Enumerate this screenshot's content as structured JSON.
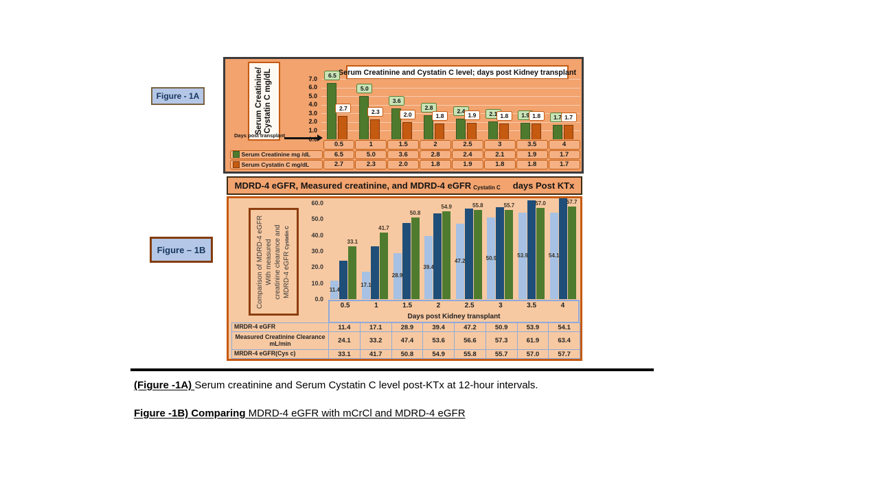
{
  "figure_1a": {
    "label": "Figure - 1A",
    "ylabel_line1": "Serum Creatinine/",
    "ylabel_line2": "Cystatin C mg/dL",
    "x_note": "Days post transplant"
  },
  "band": {
    "main": "MDRD-4 eGFR, Measured creatinine, and MDRD-4 eGFR",
    "sub": "Cystatin C",
    "suffix": "days Post KTx"
  },
  "figure_1b": {
    "label": "Figure – 1B",
    "ylabel_line1": "Comparison of MDRD-4 eGFR",
    "ylabel_line2": "With measured",
    "ylabel_line3": "creatinine clearance  and",
    "ylabel_line4_main": "MDRD-4 eGFR",
    "ylabel_line4_sub": "Cystatin C"
  },
  "captions": {
    "line1_bold": "(Figure -1A) ",
    "line1_rest": "Serum creatinine and Serum Cystatin C level post-KTx at 12-hour intervals.",
    "line2_bold": "Figure -1B) Comparing ",
    "line2_rest": "MDRD-4 eGFR with mCrCl and MDRD-4 eGFR"
  },
  "colors": {
    "fig1a_background": "#F2A36E",
    "fig1b_background": "#F7C9A2",
    "fig1a_frame_border": "#3B3B3B",
    "fig1b_frame_border": "#C55A11",
    "fig1a_table_border": "#C05A11",
    "fig1b_table_border": "#8EAADB",
    "figure_tag_fill": "#B4C7E7"
  },
  "chart_data": [
    {
      "type": "bar",
      "title": "Serum Creatinine  and Cystatin C level; days post Kidney transplant",
      "categories": [
        "0.5",
        "1",
        "1.5",
        "2",
        "2.5",
        "3",
        "3.5",
        "4"
      ],
      "series": [
        {
          "name": "Serum Creatinine mg /dL",
          "color": "#4E7A2E",
          "edge": "#375623",
          "label_style": "boxed-green",
          "values": [
            6.5,
            5.0,
            3.6,
            2.8,
            2.4,
            2.1,
            1.9,
            1.7
          ]
        },
        {
          "name": "Serum Cystatin C mg/dL",
          "color": "#C55A11",
          "edge": "#833C0B",
          "label_style": "boxed-white",
          "values": [
            2.7,
            2.3,
            2.0,
            1.8,
            1.9,
            1.8,
            1.8,
            1.7
          ]
        }
      ],
      "xlabel": "Days post transplant",
      "ylabel": "Serum Creatinine/ Cystatin C mg/dL",
      "ylim": [
        0,
        7
      ],
      "yticks": [
        "7.0",
        "6.0",
        "5.0",
        "4.0",
        "3.0",
        "2.0",
        "1.0",
        "0.0"
      ],
      "grid": true,
      "legend_position": "table-left"
    },
    {
      "type": "bar",
      "title": "MDRD-4 eGFR, Measured creatinine, and MDRD-4 eGFR Cystatin C  days Post KTx",
      "categories": [
        "0.5",
        "1",
        "1.5",
        "2",
        "2.5",
        "3",
        "3.5",
        "4"
      ],
      "series": [
        {
          "name": "MRDR-4 eGFR",
          "table_label": "MRDR-4 eGFR",
          "color": "#A6C1E3",
          "label_style": "inside-center",
          "values": [
            11.4,
            17.1,
            28.9,
            39.4,
            47.2,
            50.9,
            53.9,
            54.1
          ]
        },
        {
          "name": "Measured Creatinine Clearance mL/min",
          "table_label": "Measured Creatinine Clearance\nmL/min",
          "color": "#1F4E79",
          "label_style": "none",
          "values": [
            24.1,
            33.2,
            47.4,
            53.6,
            56.6,
            57.3,
            61.9,
            63.4
          ]
        },
        {
          "name": "MRDR-4 eGFR(Cys c)",
          "table_label": "MRDR-4 eGFR(Cys c)",
          "color": "#4F7B2F",
          "label_style": "above",
          "values": [
            33.1,
            41.7,
            50.8,
            54.9,
            55.8,
            55.7,
            57.0,
            57.7
          ]
        }
      ],
      "xlabel": "Days post Kidney transplant",
      "ylabel": "Comparison of MDRD-4 eGFR With measured creatinine clearance and MDRD-4 eGFR Cystatin C",
      "ylim": [
        0,
        60
      ],
      "yticks": [
        "60.0",
        "50.0",
        "40.0",
        "30.0",
        "20.0",
        "10.0",
        "0.0"
      ],
      "grid": false,
      "legend_position": "table-left"
    }
  ]
}
